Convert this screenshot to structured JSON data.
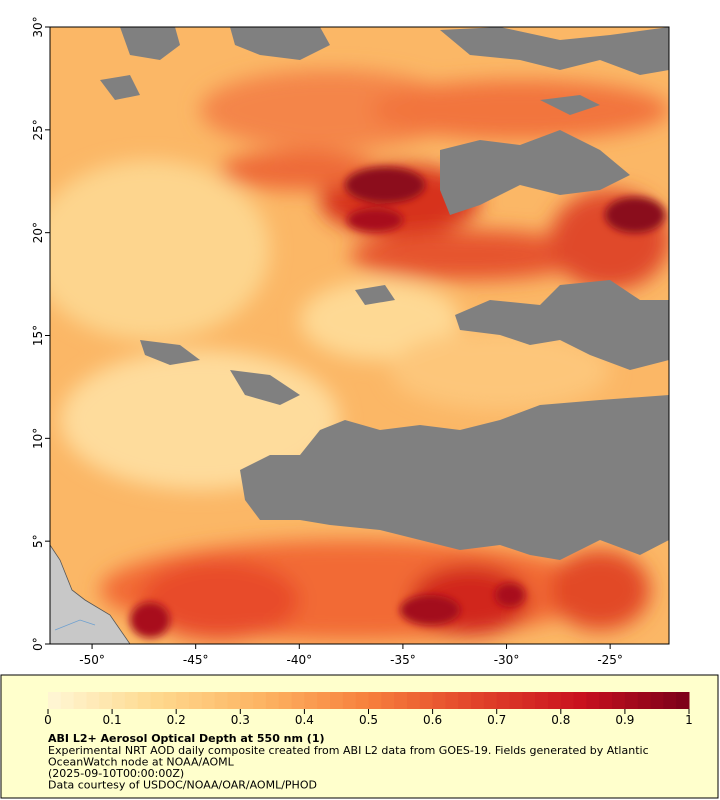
{
  "map": {
    "xlim": [
      -52.03,
      -22.16
    ],
    "ylim": [
      0,
      30
    ],
    "xticks": [
      {
        "value": -50,
        "label": "-50°"
      },
      {
        "value": -45,
        "label": "-45°"
      },
      {
        "value": -40,
        "label": "-40°"
      },
      {
        "value": -35,
        "label": "-35°"
      },
      {
        "value": -30,
        "label": "-30°"
      },
      {
        "value": -25,
        "label": "-25°"
      }
    ],
    "yticks": [
      {
        "value": 0,
        "label": "0°"
      },
      {
        "value": 5,
        "label": "5°"
      },
      {
        "value": 10,
        "label": "10°"
      },
      {
        "value": 15,
        "label": "15°"
      },
      {
        "value": 20,
        "label": "20°"
      },
      {
        "value": 25,
        "label": "25°"
      },
      {
        "value": 30,
        "label": "30°"
      }
    ]
  },
  "colorbar": {
    "lim": [
      0,
      1
    ],
    "ticks": [
      0,
      0.1,
      0.2,
      0.3,
      0.4,
      0.5,
      0.6,
      0.7,
      0.8,
      0.9,
      1
    ],
    "colors": [
      "#fff7d6",
      "#fed98e",
      "#fdb463",
      "#f7803c",
      "#e2442a",
      "#c8101e",
      "#7a0019"
    ]
  },
  "caption": {
    "title": "ABI L2+ Aerosol Optical Depth at 550 nm (1)",
    "lines": [
      "Experimental NRT AOD daily composite created from ABI L2 data from GOES-19. Fields generated by Atlantic",
      "OceanWatch node at NOAA/AOML",
      "(2025-09-10T00:00:00Z)",
      "Data courtesy of USDOC/NOAA/OAR/AOML/PHOD"
    ]
  }
}
